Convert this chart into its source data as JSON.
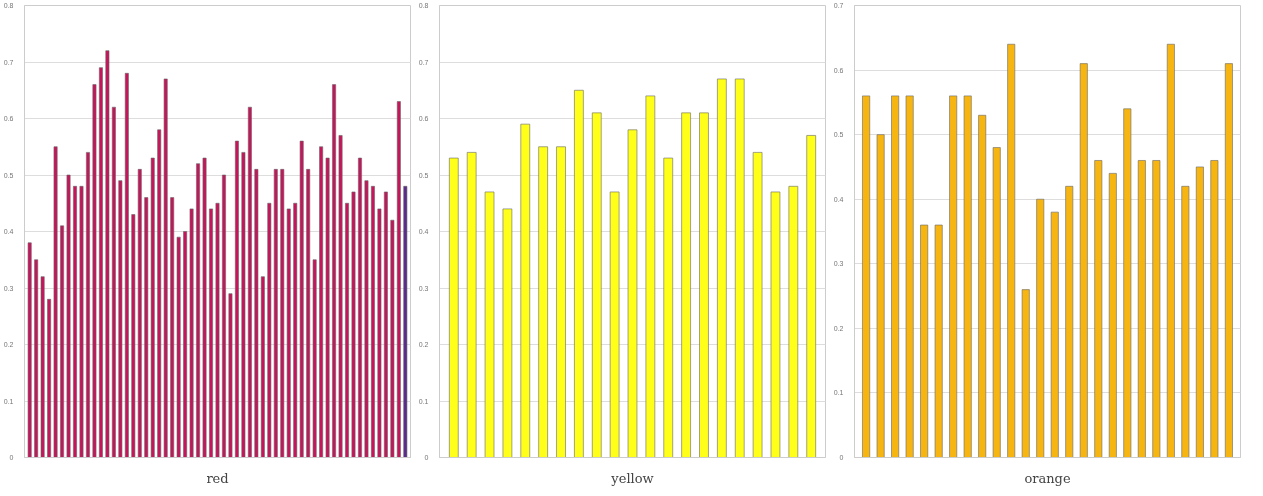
{
  "chart_data": [
    {
      "type": "bar",
      "title": "red",
      "categories": [
        null,
        null,
        null,
        null,
        null,
        null,
        null,
        null,
        null,
        null,
        null,
        null,
        null,
        null,
        null,
        null,
        null,
        null,
        null,
        null,
        null,
        null,
        null,
        null,
        null,
        null,
        null,
        null,
        null,
        null,
        null,
        null,
        null,
        null,
        null,
        null,
        null,
        null,
        null,
        null,
        null,
        null,
        null,
        null,
        null,
        null,
        null,
        null,
        null,
        null,
        null,
        null,
        null,
        null,
        null,
        null,
        null,
        null,
        null
      ],
      "values": [
        0.38,
        0.35,
        0.32,
        0.28,
        0.55,
        0.41,
        0.5,
        0.48,
        0.48,
        0.54,
        0.66,
        0.69,
        0.72,
        0.62,
        0.49,
        0.68,
        0.43,
        0.51,
        0.46,
        0.53,
        0.58,
        0.67,
        0.46,
        0.39,
        0.4,
        0.44,
        0.52,
        0.53,
        0.44,
        0.45,
        0.5,
        0.29,
        0.56,
        0.54,
        0.62,
        0.51,
        0.32,
        0.45,
        0.51,
        0.51,
        0.44,
        0.45,
        0.56,
        0.51,
        0.35,
        0.55,
        0.53,
        0.66,
        0.57,
        0.45,
        0.47,
        0.53,
        0.49,
        0.48,
        0.44,
        0.47,
        0.42,
        0.63,
        0.48
      ],
      "colors": [
        "#c8145a",
        "#c8145a",
        "#c8145a",
        "#c8145a",
        "#c8145a",
        "#c8145a",
        "#c8145a",
        "#c8145a",
        "#c8145a",
        "#c8145a",
        "#c8145a",
        "#c8145a",
        "#c8145a",
        "#c8145a",
        "#c8145a",
        "#c8145a",
        "#c8145a",
        "#c8145a",
        "#c8145a",
        "#c8145a",
        "#c8145a",
        "#c8145a",
        "#c8145a",
        "#c8145a",
        "#c8145a",
        "#c8145a",
        "#c8145a",
        "#c8145a",
        "#c8145a",
        "#c8145a",
        "#c8145a",
        "#c8145a",
        "#c8145a",
        "#c8145a",
        "#c8145a",
        "#c8145a",
        "#c8145a",
        "#c8145a",
        "#c8145a",
        "#c8145a",
        "#c8145a",
        "#c8145a",
        "#c8145a",
        "#c8145a",
        "#c8145a",
        "#c8145a",
        "#c8145a",
        "#c8145a",
        "#c8145a",
        "#c8145a",
        "#c8145a",
        "#c8145a",
        "#c8145a",
        "#c8145a",
        "#c8145a",
        "#c8145a",
        "#c8145a",
        "#c8145a",
        "#5b2a8c"
      ],
      "ylim": [
        0,
        0.8
      ],
      "yticks": [
        0,
        0.1,
        0.2,
        0.3,
        0.4,
        0.5,
        0.6,
        0.7,
        0.8
      ],
      "grid": "y"
    },
    {
      "type": "bar",
      "title": "yellow",
      "categories": [
        null,
        null,
        null,
        null,
        null,
        null,
        null,
        null,
        null,
        null,
        null,
        null,
        null,
        null,
        null,
        null,
        null,
        null,
        null,
        null,
        null
      ],
      "values": [
        0.53,
        0.54,
        0.47,
        0.44,
        0.59,
        0.55,
        0.55,
        0.65,
        0.61,
        0.47,
        0.58,
        0.64,
        0.53,
        0.61,
        0.61,
        0.67,
        0.67,
        0.54,
        0.47,
        0.48,
        0.57
      ],
      "color": "#ffff1a",
      "ylim": [
        0,
        0.8
      ],
      "yticks": [
        0,
        0.1,
        0.2,
        0.3,
        0.4,
        0.5,
        0.6,
        0.7,
        0.8
      ],
      "grid": "y"
    },
    {
      "type": "bar",
      "title": "orange",
      "categories": [
        null,
        null,
        null,
        null,
        null,
        null,
        null,
        null,
        null,
        null,
        null,
        null,
        null,
        null,
        null,
        null,
        null,
        null,
        null,
        null,
        null,
        null,
        null,
        null,
        null,
        null
      ],
      "values": [
        0.56,
        0.5,
        0.56,
        0.56,
        0.36,
        0.36,
        0.56,
        0.56,
        0.53,
        0.48,
        0.64,
        0.26,
        0.4,
        0.38,
        0.42,
        0.61,
        0.46,
        0.44,
        0.54,
        0.46,
        0.46,
        0.64,
        0.42,
        0.45,
        0.46,
        0.61
      ],
      "color": "#f7b512",
      "ylim": [
        0,
        0.7
      ],
      "yticks": [
        0,
        0.1,
        0.2,
        0.3,
        0.4,
        0.5,
        0.6,
        0.7
      ],
      "grid": "y"
    }
  ]
}
